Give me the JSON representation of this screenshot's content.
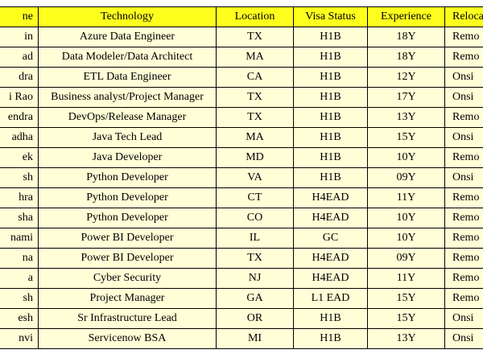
{
  "headers": {
    "name": "ne",
    "technology": "Technology",
    "location": "Location",
    "visa_status": "Visa Status",
    "experience": "Experience",
    "relocation": "Reloca"
  },
  "rows": [
    {
      "name": "in",
      "technology": "Azure Data Engineer",
      "location": "TX",
      "visa": "H1B",
      "experience": "18Y",
      "relocation": "Remo"
    },
    {
      "name": "ad",
      "technology": "Data Modeler/Data Architect",
      "location": "MA",
      "visa": "H1B",
      "experience": "18Y",
      "relocation": "Remo"
    },
    {
      "name": "dra",
      "technology": "ETL Data Engineer",
      "location": "CA",
      "visa": "H1B",
      "experience": "12Y",
      "relocation": "Onsi"
    },
    {
      "name": "i Rao",
      "technology": "Business analyst/Project Manager",
      "location": "TX",
      "visa": "H1B",
      "experience": "17Y",
      "relocation": "Onsi"
    },
    {
      "name": "endra",
      "technology": "DevOps/Release Manager",
      "location": "TX",
      "visa": "H1B",
      "experience": "13Y",
      "relocation": "Remo"
    },
    {
      "name": "adha",
      "technology": "Java Tech Lead",
      "location": "MA",
      "visa": "H1B",
      "experience": "15Y",
      "relocation": "Onsi"
    },
    {
      "name": "ek",
      "technology": "Java Developer",
      "location": "MD",
      "visa": "H1B",
      "experience": "10Y",
      "relocation": "Remo"
    },
    {
      "name": "sh",
      "technology": "Python Developer",
      "location": "VA",
      "visa": "H1B",
      "experience": "09Y",
      "relocation": "Onsi"
    },
    {
      "name": "hra",
      "technology": "Python Developer",
      "location": "CT",
      "visa": "H4EAD",
      "experience": "11Y",
      "relocation": "Remo"
    },
    {
      "name": "sha",
      "technology": "Python Developer",
      "location": "CO",
      "visa": "H4EAD",
      "experience": "10Y",
      "relocation": "Remo"
    },
    {
      "name": "nami",
      "technology": "Power BI Developer",
      "location": "IL",
      "visa": "GC",
      "experience": "10Y",
      "relocation": "Remo"
    },
    {
      "name": "na",
      "technology": "Power BI Developer",
      "location": "TX",
      "visa": "H4EAD",
      "experience": "09Y",
      "relocation": "Remo"
    },
    {
      "name": "a",
      "technology": "Cyber Security",
      "location": "NJ",
      "visa": "H4EAD",
      "experience": "11Y",
      "relocation": "Remo"
    },
    {
      "name": "sh",
      "technology": "Project Manager",
      "location": "GA",
      "visa": "L1 EAD",
      "experience": "15Y",
      "relocation": "Remo"
    },
    {
      "name": "esh",
      "technology": "Sr Infrastructure Lead",
      "location": "OR",
      "visa": "H1B",
      "experience": "15Y",
      "relocation": "Onsi"
    },
    {
      "name": "nvi",
      "technology": "Servicenow BSA",
      "location": "MI",
      "visa": "H1B",
      "experience": "13Y",
      "relocation": "Onsi"
    }
  ]
}
